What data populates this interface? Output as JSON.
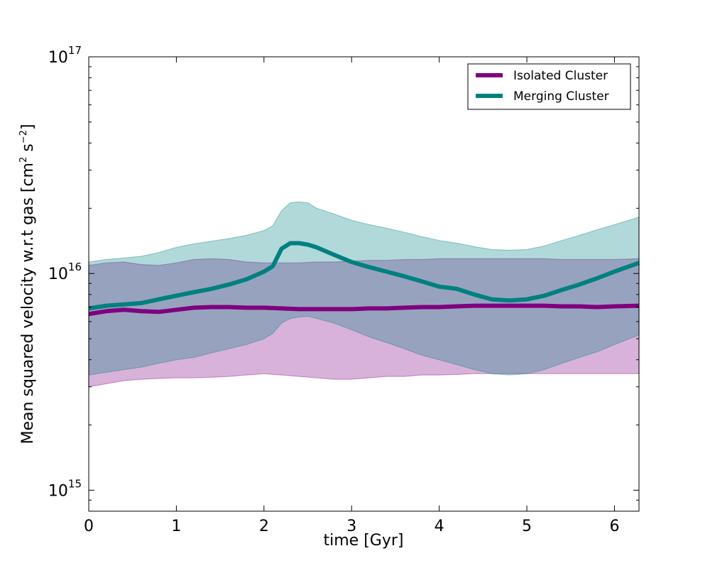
{
  "chart_data": {
    "type": "area",
    "title": "",
    "xlabel": "time [Gyr]",
    "ylabel": {
      "main": "Mean squared velocity w.r.t gas [cm",
      "sup1": "2",
      "mid": " s",
      "sup2": "−2",
      "end": "]"
    },
    "xlim": [
      0,
      6.28
    ],
    "ylim": [
      800000000000000.0,
      1e+17
    ],
    "yscale": "log",
    "grid": false,
    "legend_position": "top-right",
    "x_ticks": [
      {
        "value": 0,
        "label": "0"
      },
      {
        "value": 1,
        "label": "1"
      },
      {
        "value": 2,
        "label": "2"
      },
      {
        "value": 3,
        "label": "3"
      },
      {
        "value": 4,
        "label": "4"
      },
      {
        "value": 5,
        "label": "5"
      },
      {
        "value": 6,
        "label": "6"
      }
    ],
    "y_ticks": [
      {
        "value": 1000000000000000.0,
        "base": "10",
        "exp": "15"
      },
      {
        "value": 1e+16,
        "base": "10",
        "exp": "16"
      },
      {
        "value": 1e+17,
        "base": "10",
        "exp": "17"
      }
    ],
    "series": [
      {
        "name": "Isolated Cluster",
        "color": "#800080",
        "band_color": "#800080",
        "band_opacity": 0.3,
        "x": [
          0,
          0.2,
          0.4,
          0.6,
          0.8,
          1.0,
          1.2,
          1.4,
          1.6,
          1.8,
          2.0,
          2.2,
          2.4,
          2.6,
          2.8,
          3.0,
          3.2,
          3.4,
          3.6,
          3.8,
          4.0,
          4.2,
          4.4,
          4.6,
          4.8,
          5.0,
          5.2,
          5.4,
          5.6,
          5.8,
          6.0,
          6.28
        ],
        "mean": [
          6500000000000000.0,
          6700000000000000.0,
          6800000000000000.0,
          6700000000000000.0,
          6650000000000000.0,
          6800000000000000.0,
          6950000000000000.0,
          7000000000000000.0,
          7000000000000000.0,
          6950000000000000.0,
          6950000000000000.0,
          6900000000000000.0,
          6850000000000000.0,
          6850000000000000.0,
          6850000000000000.0,
          6850000000000000.0,
          6900000000000000.0,
          6900000000000000.0,
          6950000000000000.0,
          7000000000000000.0,
          7000000000000000.0,
          7050000000000000.0,
          7100000000000000.0,
          7100000000000000.0,
          7100000000000000.0,
          7100000000000000.0,
          7100000000000000.0,
          7050000000000000.0,
          7050000000000000.0,
          7000000000000000.0,
          7050000000000000.0,
          7100000000000000.0
        ],
        "lower": [
          3000000000000000.0,
          3100000000000000.0,
          3200000000000000.0,
          3250000000000000.0,
          3280000000000000.0,
          3300000000000000.0,
          3300000000000000.0,
          3320000000000000.0,
          3350000000000000.0,
          3400000000000000.0,
          3450000000000000.0,
          3400000000000000.0,
          3350000000000000.0,
          3300000000000000.0,
          3250000000000000.0,
          3250000000000000.0,
          3300000000000000.0,
          3350000000000000.0,
          3350000000000000.0,
          3400000000000000.0,
          3400000000000000.0,
          3420000000000000.0,
          3450000000000000.0,
          3450000000000000.0,
          3450000000000000.0,
          3450000000000000.0,
          3450000000000000.0,
          3450000000000000.0,
          3450000000000000.0,
          3450000000000000.0,
          3450000000000000.0,
          3450000000000000.0
        ],
        "upper": [
          1.09e+16,
          1.12e+16,
          1.13e+16,
          1.1e+16,
          1.09e+16,
          1.12e+16,
          1.16e+16,
          1.17e+16,
          1.16e+16,
          1.13e+16,
          1.12e+16,
          1.12e+16,
          1.12e+16,
          1.13e+16,
          1.13e+16,
          1.14e+16,
          1.15e+16,
          1.15e+16,
          1.16e+16,
          1.16e+16,
          1.17e+16,
          1.17e+16,
          1.17e+16,
          1.17e+16,
          1.17e+16,
          1.17e+16,
          1.17e+16,
          1.16e+16,
          1.16e+16,
          1.16e+16,
          1.16e+16,
          1.17e+16
        ]
      },
      {
        "name": "Merging Cluster",
        "color": "#008080",
        "band_color": "#008080",
        "band_opacity": 0.3,
        "x": [
          0,
          0.2,
          0.4,
          0.6,
          0.8,
          1.0,
          1.2,
          1.4,
          1.6,
          1.8,
          2.0,
          2.1,
          2.2,
          2.3,
          2.4,
          2.5,
          2.6,
          2.8,
          3.0,
          3.2,
          3.4,
          3.6,
          3.8,
          4.0,
          4.2,
          4.4,
          4.6,
          4.8,
          5.0,
          5.2,
          5.4,
          5.6,
          5.8,
          6.0,
          6.28
        ],
        "mean": [
          6900000000000000.0,
          7100000000000000.0,
          7200000000000000.0,
          7300000000000000.0,
          7600000000000000.0,
          7900000000000000.0,
          8200000000000000.0,
          8500000000000000.0,
          8900000000000000.0,
          9400000000000000.0,
          1.02e+16,
          1.08e+16,
          1.3e+16,
          1.38e+16,
          1.38e+16,
          1.36e+16,
          1.32e+16,
          1.22e+16,
          1.13e+16,
          1.07e+16,
          1.02e+16,
          9700000000000000.0,
          9200000000000000.0,
          8700000000000000.0,
          8500000000000000.0,
          8000000000000000.0,
          7600000000000000.0,
          7500000000000000.0,
          7600000000000000.0,
          7900000000000000.0,
          8400000000000000.0,
          8900000000000000.0,
          9500000000000000.0,
          1.02e+16,
          1.12e+16
        ],
        "lower": [
          3400000000000000.0,
          3500000000000000.0,
          3600000000000000.0,
          3700000000000000.0,
          3850000000000000.0,
          4000000000000000.0,
          4100000000000000.0,
          4300000000000000.0,
          4500000000000000.0,
          4700000000000000.0,
          5000000000000000.0,
          5300000000000000.0,
          5900000000000000.0,
          6200000000000000.0,
          6300000000000000.0,
          6350000000000000.0,
          6200000000000000.0,
          5900000000000000.0,
          5500000000000000.0,
          5100000000000000.0,
          4800000000000000.0,
          4500000000000000.0,
          4200000000000000.0,
          4000000000000000.0,
          3800000000000000.0,
          3600000000000000.0,
          3450000000000000.0,
          3400000000000000.0,
          3450000000000000.0,
          3600000000000000.0,
          3850000000000000.0,
          4100000000000000.0,
          4350000000000000.0,
          4700000000000000.0,
          5200000000000000.0
        ],
        "upper": [
          1.13e+16,
          1.16e+16,
          1.18e+16,
          1.2e+16,
          1.25e+16,
          1.32e+16,
          1.37e+16,
          1.41e+16,
          1.45e+16,
          1.5e+16,
          1.58e+16,
          1.66e+16,
          1.95e+16,
          2.12e+16,
          2.14e+16,
          2.12e+16,
          2e+16,
          1.88e+16,
          1.76e+16,
          1.68e+16,
          1.62e+16,
          1.55e+16,
          1.48e+16,
          1.42e+16,
          1.38e+16,
          1.33e+16,
          1.29e+16,
          1.28e+16,
          1.29e+16,
          1.34e+16,
          1.42e+16,
          1.5e+16,
          1.59e+16,
          1.68e+16,
          1.82e+16
        ]
      }
    ]
  }
}
